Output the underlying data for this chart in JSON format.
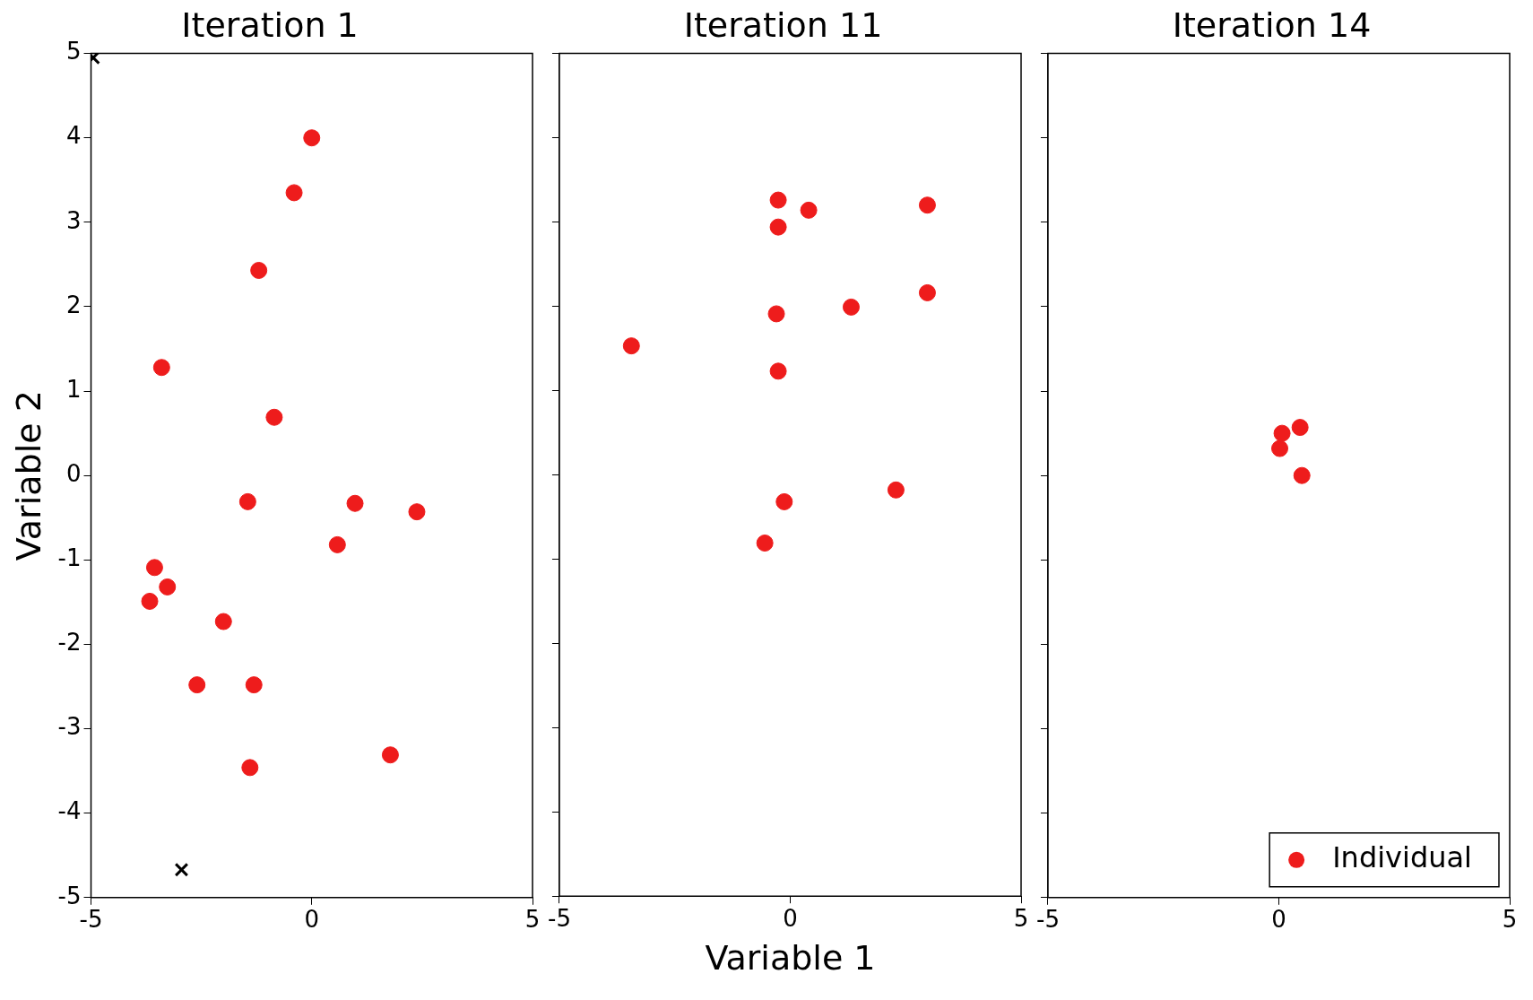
{
  "chart_data": [
    {
      "type": "scatter",
      "title": "Iteration 1",
      "ylabel": "Variable 2",
      "xlim": [
        -5,
        5
      ],
      "xticks": [
        -5,
        0,
        5
      ],
      "ylim": [
        -5,
        5
      ],
      "yticks": [
        -5,
        -4,
        -3,
        -2,
        -1,
        0,
        1,
        2,
        3,
        4,
        5
      ],
      "grid": false,
      "legend": false,
      "series": [
        {
          "color": "#ee1c1c",
          "marker": "circle",
          "x": [
            0,
            -0.4,
            -1.2,
            -3.4,
            -0.85,
            -1.45,
            0.98,
            0.58,
            2.38,
            -3.56,
            -3.27,
            -3.67,
            -2.0,
            -2.6,
            -1.31,
            1.78,
            -1.4
          ],
          "values": [
            4.0,
            3.35,
            2.43,
            1.28,
            0.69,
            -0.31,
            -0.33,
            -0.82,
            -0.43,
            -1.09,
            -1.32,
            -1.49,
            -1.73,
            -2.48,
            -2.48,
            -3.31,
            -3.46
          ]
        },
        {
          "color": "#000000",
          "marker": "cross",
          "x": [
            -4.95,
            -2.95
          ],
          "values": [
            4.95,
            -4.67
          ]
        }
      ]
    },
    {
      "type": "scatter",
      "title": "Iteration 11",
      "xlabel": "Variable 1",
      "xlim": [
        -5,
        5
      ],
      "xticks": [
        -5,
        0,
        5
      ],
      "ylim": [
        -5,
        5
      ],
      "yticks": [
        -5,
        -4,
        -3,
        -2,
        -1,
        0,
        1,
        2,
        3,
        4,
        5
      ],
      "grid": false,
      "legend": false,
      "tick_labels": "x",
      "series": [
        {
          "color": "#ee1c1c",
          "marker": "circle",
          "x": [
            -0.26,
            -0.26,
            0.4,
            2.97,
            2.97,
            -0.3,
            1.32,
            -3.44,
            -0.26,
            2.29,
            -0.13,
            -0.55
          ],
          "values": [
            3.26,
            2.94,
            3.14,
            3.2,
            2.16,
            1.91,
            1.99,
            1.53,
            1.23,
            -0.18,
            -0.32,
            -0.81
          ]
        }
      ]
    },
    {
      "type": "scatter",
      "title": "Iteration 14",
      "xlim": [
        -5,
        5
      ],
      "xticks": [
        -5,
        0,
        5
      ],
      "ylim": [
        -5,
        5
      ],
      "yticks": [
        -5,
        -4,
        -3,
        -2,
        -1,
        0,
        1,
        2,
        3,
        4,
        5
      ],
      "grid": false,
      "legend": "bottom right",
      "tick_labels": "x",
      "series": [
        {
          "name": "Individual",
          "color": "#ee1c1c",
          "marker": "circle",
          "x": [
            0.07,
            0.46,
            0.02,
            0.5
          ],
          "values": [
            0.5,
            0.57,
            0.32,
            0.0
          ]
        }
      ]
    }
  ]
}
